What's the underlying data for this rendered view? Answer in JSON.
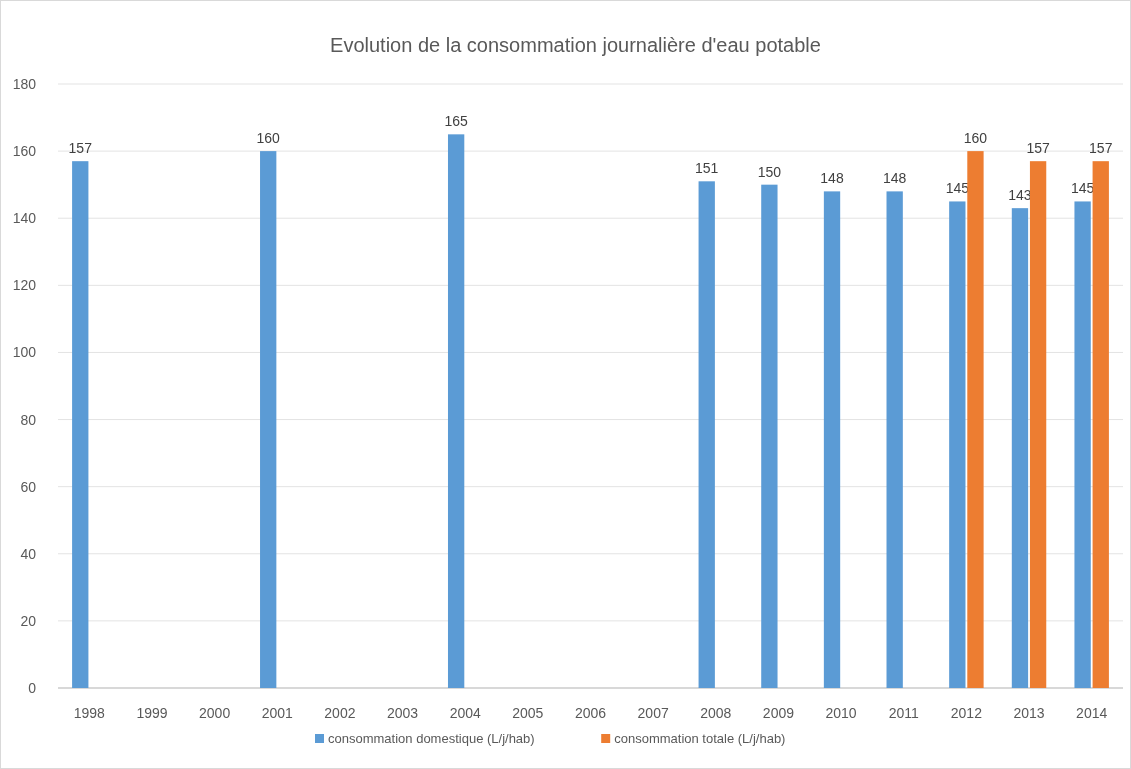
{
  "chart_data": {
    "type": "bar",
    "title": "Evolution de la consommation journalière d'eau potable",
    "categories": [
      "1998",
      "1999",
      "2000",
      "2001",
      "2002",
      "2003",
      "2004",
      "2005",
      "2006",
      "2007",
      "2008",
      "2009",
      "2010",
      "2011",
      "2012",
      "2013",
      "2014"
    ],
    "series": [
      {
        "name": "consommation domestique (L/j/hab)",
        "color": "#5b9bd5",
        "values": [
          157,
          null,
          null,
          160,
          null,
          null,
          165,
          null,
          null,
          null,
          151,
          150,
          148,
          148,
          145,
          143,
          145
        ]
      },
      {
        "name": "consommation totale (L/j/hab)",
        "color": "#ed7d31",
        "values": [
          null,
          null,
          null,
          null,
          null,
          null,
          null,
          null,
          null,
          null,
          null,
          null,
          null,
          null,
          160,
          157,
          157
        ]
      }
    ],
    "ylim": [
      0,
      180
    ],
    "yticks": [
      0,
      20,
      40,
      60,
      80,
      100,
      120,
      140,
      160,
      180
    ],
    "grid": "y",
    "legend": "bottom",
    "data_labels": true
  }
}
